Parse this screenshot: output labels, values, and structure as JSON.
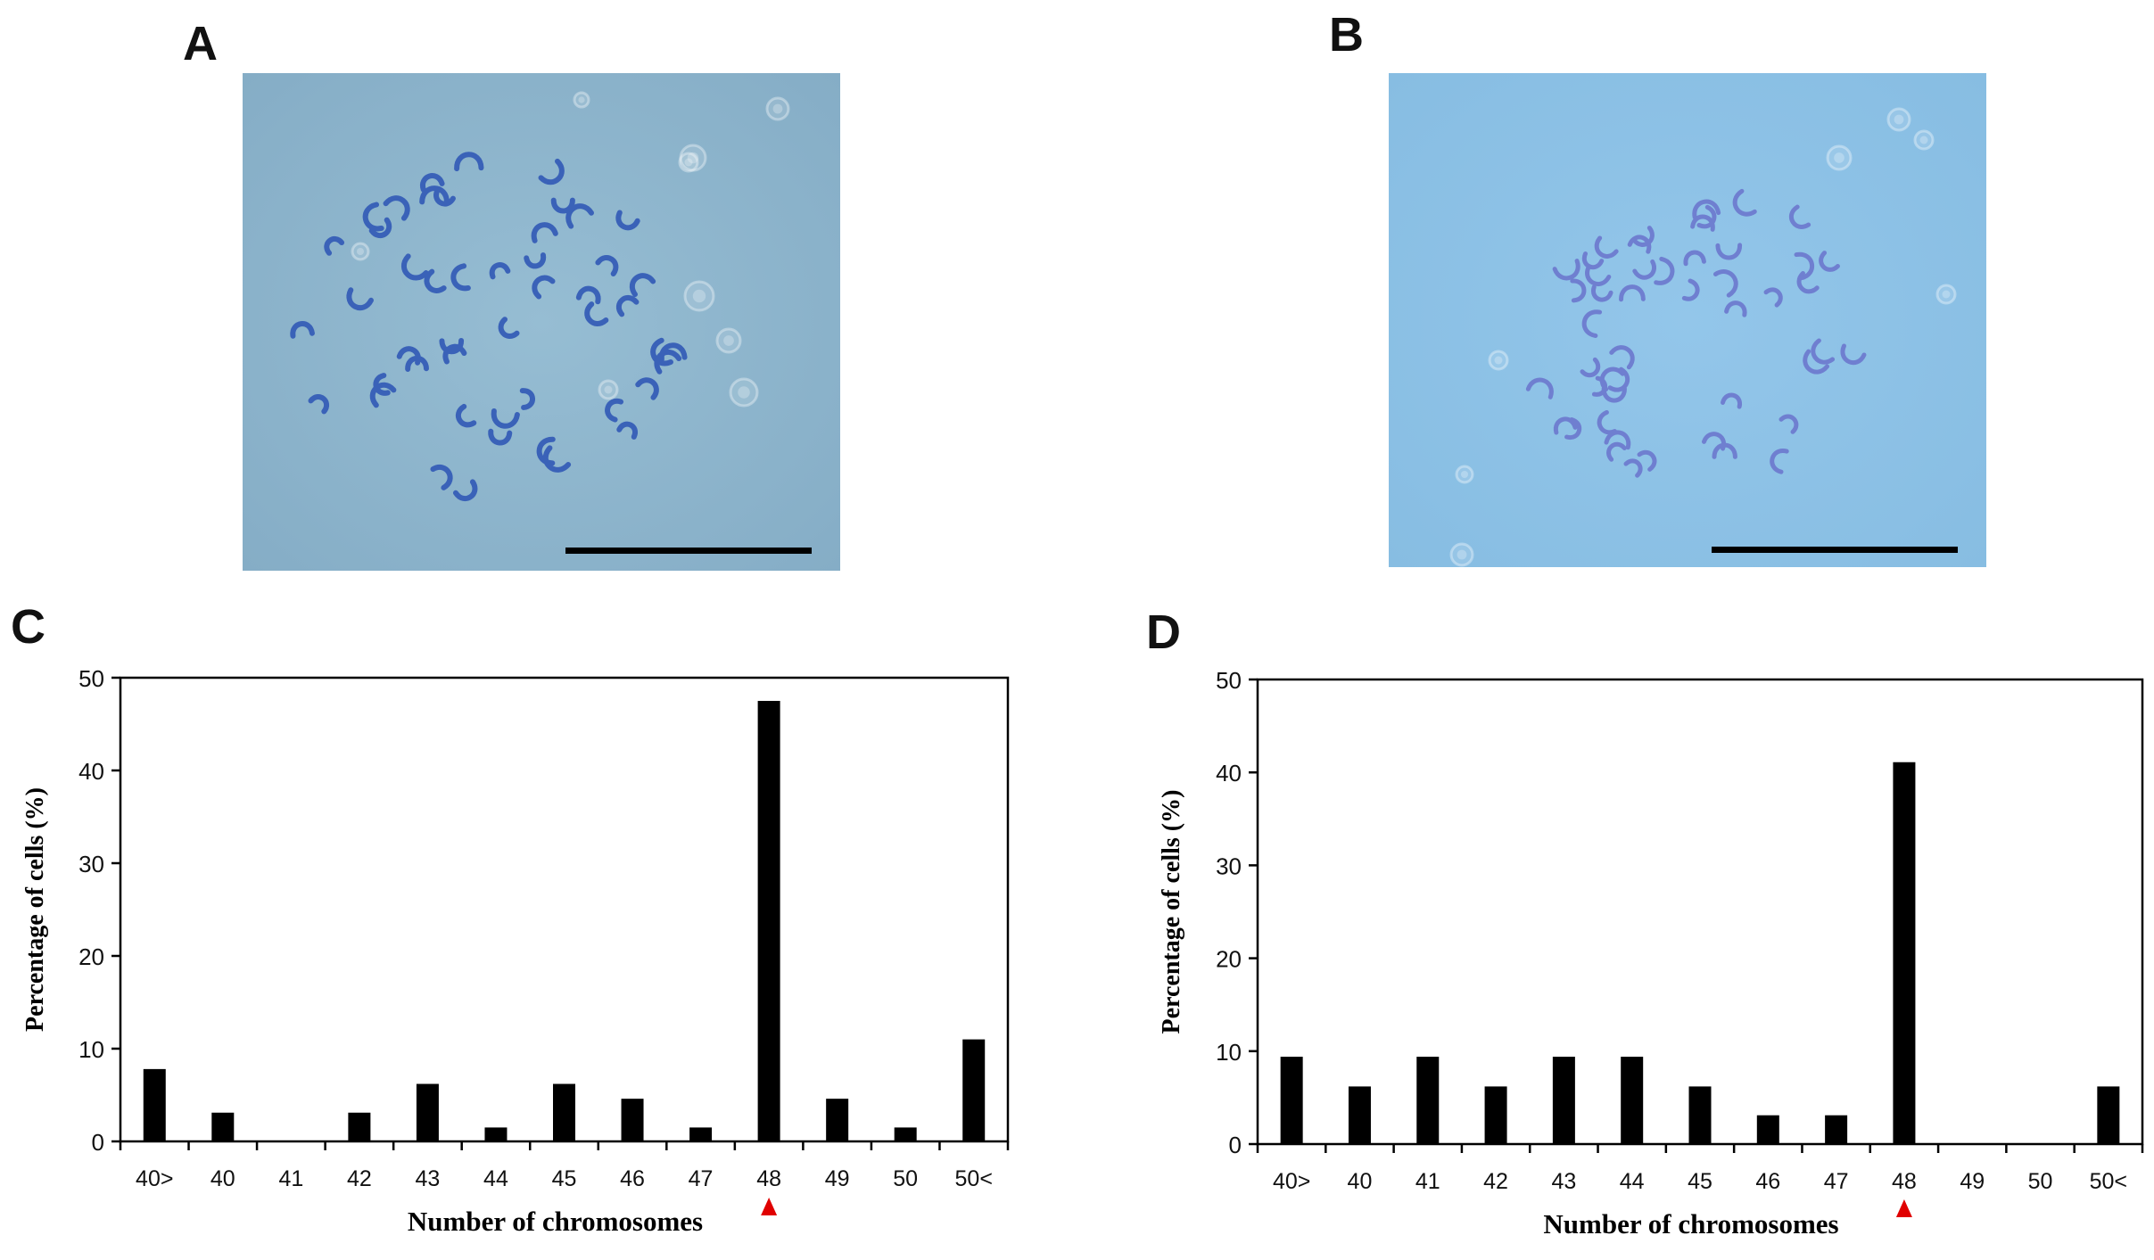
{
  "panels": {
    "a": "A",
    "b": "B",
    "c": "C",
    "d": "D"
  },
  "micrographs": [
    {
      "name": "metaphase-spread-a",
      "background": "#8fb6ce",
      "chromosome_color": "#3a62b8",
      "chromosome_count": 48,
      "has_scale_bar": true
    },
    {
      "name": "metaphase-spread-b",
      "background": "#8ec2e6",
      "chromosome_color": "#6f7fd0",
      "chromosome_count": 48,
      "has_scale_bar": true
    }
  ],
  "colors": {
    "bar": "#000000",
    "marker": "#e00000",
    "axis": "#000000"
  },
  "chart_data": [
    {
      "type": "bar",
      "panel": "C",
      "categories": [
        "40>",
        "40",
        "41",
        "42",
        "43",
        "44",
        "45",
        "46",
        "47",
        "48",
        "49",
        "50",
        "50<"
      ],
      "values": [
        7.8,
        3.1,
        0,
        3.1,
        6.2,
        1.5,
        6.2,
        4.6,
        1.5,
        47.5,
        4.6,
        1.5,
        11.0
      ],
      "xlabel": "Number of chromosomes",
      "ylabel": "Percentage of cells (%)",
      "ylim": [
        0,
        50
      ],
      "yticks": [
        0,
        10,
        20,
        30,
        40,
        50
      ],
      "highlight_category": "48",
      "grid": false
    },
    {
      "type": "bar",
      "panel": "D",
      "categories": [
        "40>",
        "40",
        "41",
        "42",
        "43",
        "44",
        "45",
        "46",
        "47",
        "48",
        "49",
        "50",
        "50<"
      ],
      "values": [
        9.4,
        6.2,
        9.4,
        6.2,
        9.4,
        9.4,
        6.2,
        3.1,
        3.1,
        41.1,
        0,
        0,
        6.2
      ],
      "xlabel": "Number of chromosomes",
      "ylabel": "Percentage of cells (%)",
      "ylim": [
        0,
        50
      ],
      "yticks": [
        0,
        10,
        20,
        30,
        40,
        50
      ],
      "highlight_category": "48",
      "grid": false
    }
  ]
}
